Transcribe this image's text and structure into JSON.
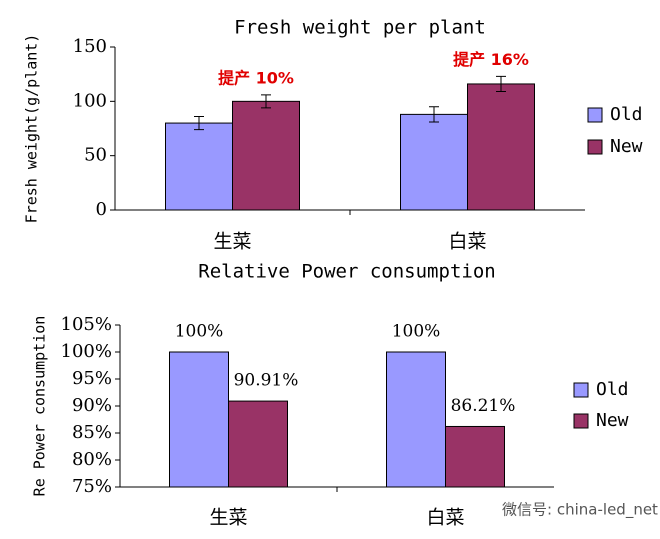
{
  "chart_data": [
    {
      "type": "bar",
      "title": "Fresh weight per plant",
      "y_label": "Fresh weight(g/plant)",
      "categories": [
        "生菜",
        "白菜"
      ],
      "series": [
        {
          "name": "Old",
          "color": "#9999ff",
          "values": [
            80,
            88
          ],
          "errors": [
            6,
            7
          ]
        },
        {
          "name": "New",
          "color": "#993366",
          "values": [
            100,
            116
          ],
          "errors": [
            6,
            7
          ]
        }
      ],
      "annotations": [
        "提产 10%",
        "提产 16%"
      ],
      "ylim": [
        0,
        150
      ],
      "yticks": [
        0,
        50,
        100,
        150
      ],
      "legend": "right"
    },
    {
      "type": "bar",
      "title": "Relative Power consumption",
      "y_label": "Re Power consumption",
      "categories": [
        "生菜",
        "白菜"
      ],
      "series": [
        {
          "name": "Old",
          "color": "#9999ff",
          "values": [
            100,
            100
          ],
          "value_labels": [
            "100%",
            "100%"
          ]
        },
        {
          "name": "New",
          "color": "#993366",
          "values": [
            90.91,
            86.21
          ],
          "value_labels": [
            "90.91%",
            "86.21%"
          ]
        }
      ],
      "ylim": [
        75,
        105
      ],
      "yticks": [
        {
          "value": 75,
          "label": "75%"
        },
        {
          "value": 80,
          "label": "80%"
        },
        {
          "value": 85,
          "label": "85%"
        },
        {
          "value": 90,
          "label": "90%"
        },
        {
          "value": 95,
          "label": "95%"
        },
        {
          "value": 100,
          "label": "100%"
        },
        {
          "value": 105,
          "label": "105%"
        }
      ],
      "legend": "right"
    }
  ],
  "watermark": "微信号: china-led_net"
}
